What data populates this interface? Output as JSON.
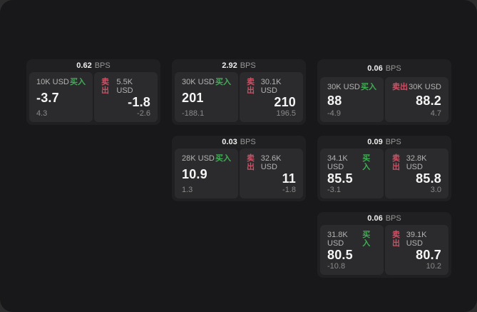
{
  "colors": {
    "buy": "#3fae54",
    "sell": "#cf5065"
  },
  "cards": [
    {
      "bps": "0.62",
      "unit": "BPS",
      "buy": {
        "size": "10K USD",
        "side": "买入",
        "main": "-3.7",
        "sub": "4.3"
      },
      "sell": {
        "size": "5.5K USD",
        "side": "卖出",
        "main": "-1.8",
        "sub": "-2.6"
      }
    },
    {
      "bps": "2.92",
      "unit": "BPS",
      "buy": {
        "size": "30K USD",
        "side": "买入",
        "main": "201",
        "sub": "-188.1"
      },
      "sell": {
        "size": "30.1K USD",
        "side": "卖出",
        "main": "210",
        "sub": "196.5"
      }
    },
    {
      "bps": "0.06",
      "unit": "BPS",
      "buy": {
        "size": "30K USD",
        "side": "买入",
        "main": "88",
        "sub": "-4.9"
      },
      "sell": {
        "size": "30K USD",
        "side": "卖出",
        "main": "88.2",
        "sub": "4.7"
      }
    },
    {
      "bps": "0.03",
      "unit": "BPS",
      "buy": {
        "size": "28K USD",
        "side": "买入",
        "main": "10.9",
        "sub": "1.3"
      },
      "sell": {
        "size": "32.6K USD",
        "side": "卖出",
        "main": "11",
        "sub": "-1.8"
      }
    },
    {
      "bps": "0.09",
      "unit": "BPS",
      "buy": {
        "size": "34.1K USD",
        "side": "买入",
        "main": "85.5",
        "sub": "-3.1"
      },
      "sell": {
        "size": "32.8K USD",
        "side": "卖出",
        "main": "85.8",
        "sub": "3.0"
      }
    },
    {
      "bps": "0.06",
      "unit": "BPS",
      "buy": {
        "size": "31.8K USD",
        "side": "买入",
        "main": "80.5",
        "sub": "-10.8"
      },
      "sell": {
        "size": "39.1K USD",
        "side": "卖出",
        "main": "80.7",
        "sub": "10.2"
      }
    }
  ]
}
